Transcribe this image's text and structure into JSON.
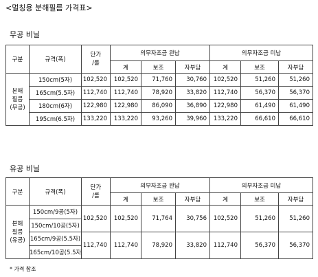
{
  "title": "<멀칭용 분해필름 가격표>",
  "sections": [
    {
      "heading": "무공 비닐",
      "header": {
        "category": "구분",
        "spec": "규격(폭)",
        "price": [
          "단가",
          "/롤"
        ],
        "group_paid": "의무자조금 완납",
        "group_unpaid": "의무자조금 미납",
        "sub": [
          "계",
          "보조",
          "자부담",
          "계",
          "보조",
          "자부담"
        ]
      },
      "category_label": [
        "본해",
        "필름",
        "(무공)"
      ],
      "rows": [
        {
          "specs": [
            "150cm(5자)"
          ],
          "values": [
            "102,520",
            "102,520",
            "71,760",
            "30,760",
            "102,520",
            "51,260",
            "51,260"
          ]
        },
        {
          "specs": [
            "165cm(5.5자)"
          ],
          "values": [
            "112,740",
            "112,740",
            "78,920",
            "33,820",
            "112,740",
            "56,370",
            "56,370"
          ]
        },
        {
          "specs": [
            "180cm(6자)"
          ],
          "values": [
            "122,980",
            "122,980",
            "86,090",
            "36,890",
            "122,980",
            "61,490",
            "61,490"
          ]
        },
        {
          "specs": [
            "195cm(6.5자)"
          ],
          "values": [
            "133,220",
            "133,220",
            "93,260",
            "39,960",
            "133,220",
            "66,610",
            "66,610"
          ]
        }
      ]
    },
    {
      "heading": "유공 비닐",
      "header": {
        "category": "구분",
        "spec": "규격(폭)",
        "price": [
          "단가",
          "/롤"
        ],
        "group_paid": "의무자조금 완납",
        "group_unpaid": "의무자조금 미납",
        "sub": [
          "계",
          "보조",
          "자부담",
          "계",
          "보조",
          "자부담"
        ]
      },
      "category_label": [
        "본해",
        "필름",
        "(유공)"
      ],
      "rows": [
        {
          "specs": [
            "150cm/9공(5자)",
            "150cm/10공(5자)"
          ],
          "values": [
            "102,520",
            "102,520",
            "71,764",
            "30,756",
            "102,520",
            "51,260",
            "51,260"
          ]
        },
        {
          "specs": [
            "165cm/9공(5.5자)",
            "165cm/10공(5.5자)"
          ],
          "values": [
            "112,740",
            "112,740",
            "78,920",
            "33,820",
            "112,740",
            "56,370",
            "56,370"
          ]
        }
      ]
    }
  ],
  "note": "* 가격 참조"
}
